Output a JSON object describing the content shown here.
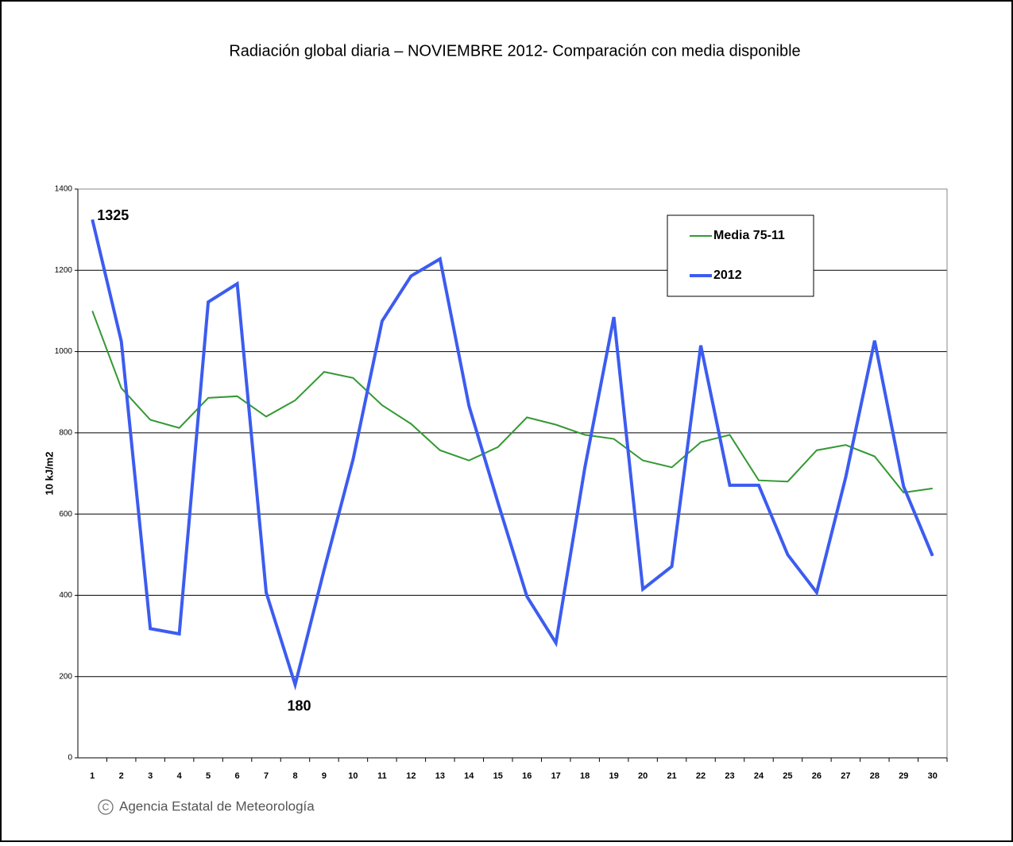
{
  "chart_data": {
    "type": "line",
    "title": "Radiación global diaria –  NOVIEMBRE 2012- Comparación con media disponible",
    "y_label": "10 kJ/m2",
    "categories": [
      "1",
      "2",
      "3",
      "4",
      "5",
      "6",
      "7",
      "8",
      "9",
      "10",
      "11",
      "12",
      "13",
      "14",
      "15",
      "16",
      "17",
      "18",
      "19",
      "20",
      "21",
      "22",
      "23",
      "24",
      "25",
      "26",
      "27",
      "28",
      "29",
      "30"
    ],
    "series": [
      {
        "name": "Media 75-11",
        "color": "#339933",
        "width": 2,
        "values": [
          1100,
          910,
          832,
          812,
          886,
          890,
          840,
          880,
          950,
          935,
          868,
          822,
          757,
          732,
          765,
          838,
          820,
          795,
          785,
          732,
          715,
          777,
          795,
          683,
          680,
          757,
          770,
          742,
          653,
          663
        ]
      },
      {
        "name": "2012",
        "color": "#3c5cf0",
        "width": 4,
        "values": [
          1325,
          1025,
          318,
          305,
          1122,
          1167,
          407,
          180,
          463,
          735,
          1075,
          1186,
          1228,
          866,
          628,
          397,
          283,
          715,
          1085,
          415,
          471,
          1015,
          671,
          671,
          500,
          407,
          690,
          1027,
          668,
          497
        ],
        "value_labels": [
          "1325",
          null,
          null,
          null,
          null,
          null,
          null,
          "180",
          null,
          null,
          null,
          null,
          null,
          null,
          null,
          null,
          null,
          null,
          null,
          null,
          null,
          null,
          null,
          null,
          null,
          null,
          null,
          null,
          null,
          null
        ]
      }
    ],
    "ylim": [
      0,
      1400
    ],
    "yticks": [
      0,
      200,
      400,
      600,
      800,
      1000,
      1200,
      1400
    ],
    "grid": true,
    "legend": "upper right",
    "source": "Agencia Estatal de Meteorología"
  }
}
